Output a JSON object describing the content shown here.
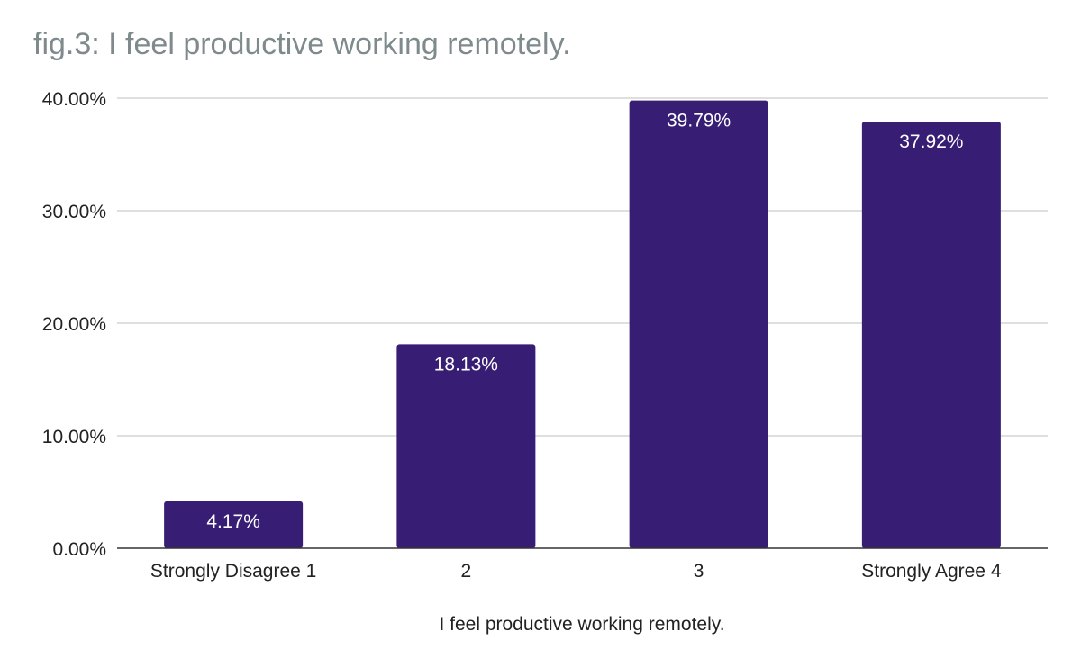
{
  "chart_data": {
    "type": "bar",
    "title": "fig.3: I feel productive working remotely.",
    "xlabel": "I feel productive working remotely.",
    "ylabel": "",
    "categories": [
      "Strongly Disagree 1",
      "2",
      "3",
      "Strongly Agree 4"
    ],
    "values": [
      4.17,
      18.13,
      39.79,
      37.92
    ],
    "value_labels": [
      "4.17%",
      "18.13%",
      "39.79%",
      "37.92%"
    ],
    "ylim": [
      0,
      40
    ],
    "yticks": [
      0,
      10,
      20,
      30,
      40
    ],
    "ytick_labels": [
      "0.00%",
      "10.00%",
      "20.00%",
      "30.00%",
      "40.00%"
    ],
    "grid": true,
    "legend": "none",
    "colors": {
      "bar": "#371e74",
      "grid": "#cccccc",
      "axis": "#333333",
      "title": "#7f8a8d"
    }
  }
}
